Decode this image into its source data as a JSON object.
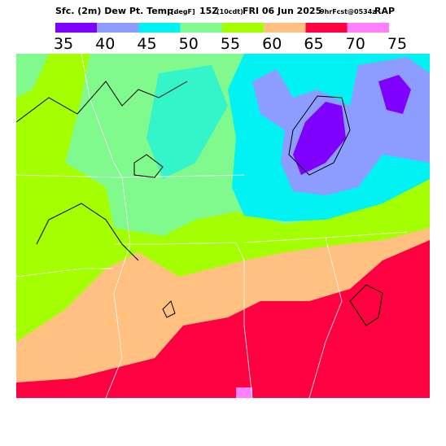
{
  "header": {
    "title": "Sfc. (2m) Dew Pt. Temp.",
    "units": "[degF]",
    "valid": "15Z",
    "local": "(10cdt)",
    "date": "FRI 06 Jun 2025",
    "forecast": "9hrFcst@0534z",
    "model": "RAP"
  },
  "legend": {
    "colors": [
      "#8000ff",
      "#8c9cff",
      "#00f2f2",
      "#80fa8c",
      "#a4ff00",
      "#ffc080",
      "#ff0040",
      "#ff80ff"
    ],
    "ticks": [
      35,
      40,
      45,
      50,
      55,
      60,
      65,
      70,
      75
    ]
  }
}
